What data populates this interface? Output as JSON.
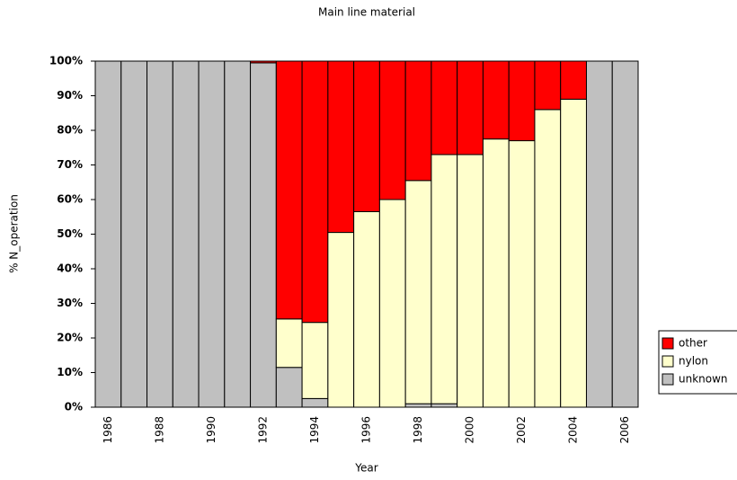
{
  "chart_data": {
    "type": "stacked-bar",
    "title": "Main line material",
    "x_label": "Year",
    "y_label": "% N_operation",
    "categories": [
      "1986",
      null,
      "1988",
      null,
      "1990",
      null,
      "1992",
      null,
      "1994",
      null,
      "1996",
      null,
      "1998",
      null,
      "2000",
      null,
      "2002",
      null,
      "2004",
      null,
      "2006"
    ],
    "series": [
      {
        "name": "unknown",
        "color": "#c0c0c0",
        "values": [
          100,
          100,
          100,
          100,
          100,
          100,
          99.5,
          11.5,
          2.5,
          0,
          0,
          0,
          1,
          1,
          0,
          0,
          0,
          0,
          0,
          100,
          100
        ]
      },
      {
        "name": "nylon",
        "color": "#ffffcc",
        "values": [
          0,
          0,
          0,
          0,
          0,
          0,
          0,
          14,
          22,
          50.5,
          56.5,
          60,
          64.5,
          72,
          73,
          77.5,
          77,
          86,
          89,
          0,
          0
        ]
      },
      {
        "name": "other",
        "color": "#ff0000",
        "values": [
          0,
          0,
          0,
          0,
          0,
          0,
          0.5,
          74.5,
          75.5,
          49.5,
          43.5,
          40,
          34.5,
          27,
          27,
          22.5,
          23,
          14,
          11,
          0,
          0
        ]
      }
    ],
    "ylim": [
      0,
      100
    ],
    "yticks": [
      {
        "value": 0,
        "label": "0%"
      },
      {
        "value": 10,
        "label": "10%"
      },
      {
        "value": 20,
        "label": "20%"
      },
      {
        "value": 30,
        "label": "30%"
      },
      {
        "value": 40,
        "label": "40%"
      },
      {
        "value": 50,
        "label": "50%"
      },
      {
        "value": 60,
        "label": "60%"
      },
      {
        "value": 70,
        "label": "70%"
      },
      {
        "value": 80,
        "label": "80%"
      },
      {
        "value": 90,
        "label": "90%"
      },
      {
        "value": 100,
        "label": "100%"
      }
    ],
    "legend": "right"
  }
}
